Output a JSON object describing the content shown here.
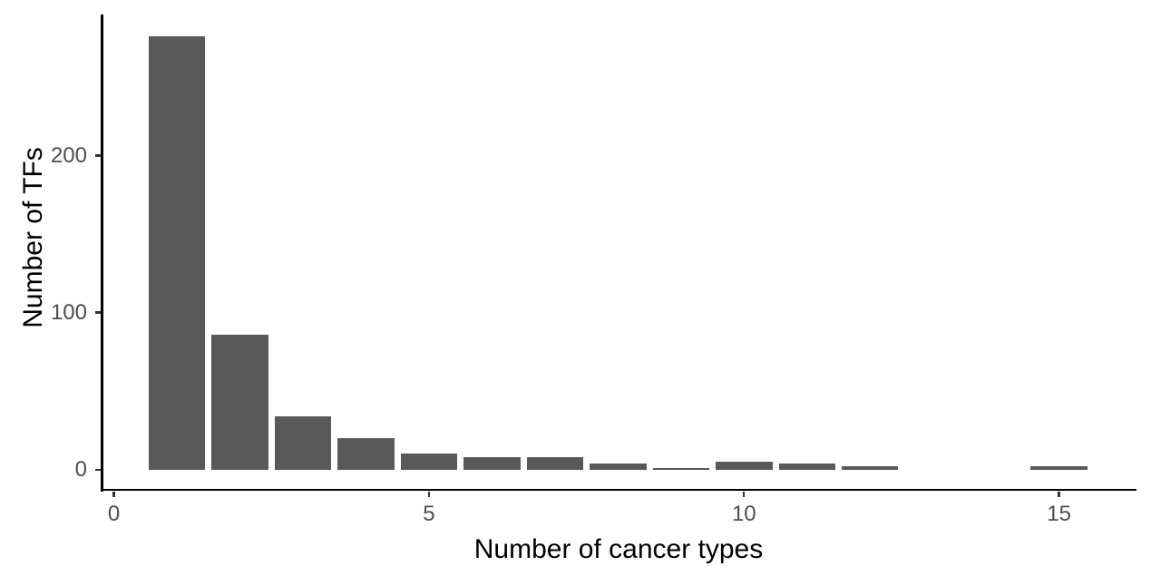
{
  "figure": {
    "background": "#ffffff",
    "bar_color": "#595959",
    "axis_line_color": "#000000",
    "tick_mark_color": "#333333",
    "tick_label_color": "#4d4d4d",
    "axis_title_color": "#000000"
  },
  "chart_data": {
    "type": "bar",
    "title": "",
    "xlabel": "Number of cancer types",
    "ylabel": "Number of TFs",
    "categories": [
      1,
      2,
      3,
      4,
      5,
      6,
      7,
      8,
      9,
      10,
      11,
      12,
      13,
      14,
      15
    ],
    "values": [
      276,
      86,
      34,
      20,
      10,
      8,
      8,
      4,
      1,
      5,
      4,
      2,
      0,
      0,
      2
    ],
    "bar_width_fraction": 0.9,
    "x_ticks": [
      {
        "value": 0,
        "label": "0"
      },
      {
        "value": 5,
        "label": "5"
      },
      {
        "value": 10,
        "label": "10"
      },
      {
        "value": 15,
        "label": "15"
      }
    ],
    "y_ticks": [
      {
        "value": 0,
        "label": "0"
      },
      {
        "value": 100,
        "label": "100"
      },
      {
        "value": 200,
        "label": "200"
      }
    ],
    "xlim": [
      -0.2,
      16.2
    ],
    "ylim": [
      -13,
      290
    ],
    "grid": false,
    "legend": false,
    "theme": "classic"
  }
}
